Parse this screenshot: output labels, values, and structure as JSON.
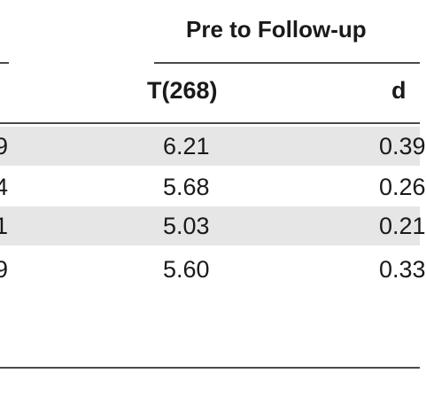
{
  "table": {
    "group_header": "Pre to Follow-up",
    "columns": {
      "t": "T(268)",
      "d": "d"
    },
    "rows": [
      {
        "left_fragment": "9",
        "t": "6.21",
        "d": "0.39"
      },
      {
        "left_fragment": "4",
        "t": "5.68",
        "d": "0.26"
      },
      {
        "left_fragment": "1",
        "t": "5.03",
        "d": "0.21"
      },
      {
        "left_fragment": "9",
        "t": "5.60",
        "d": "0.33"
      }
    ]
  }
}
